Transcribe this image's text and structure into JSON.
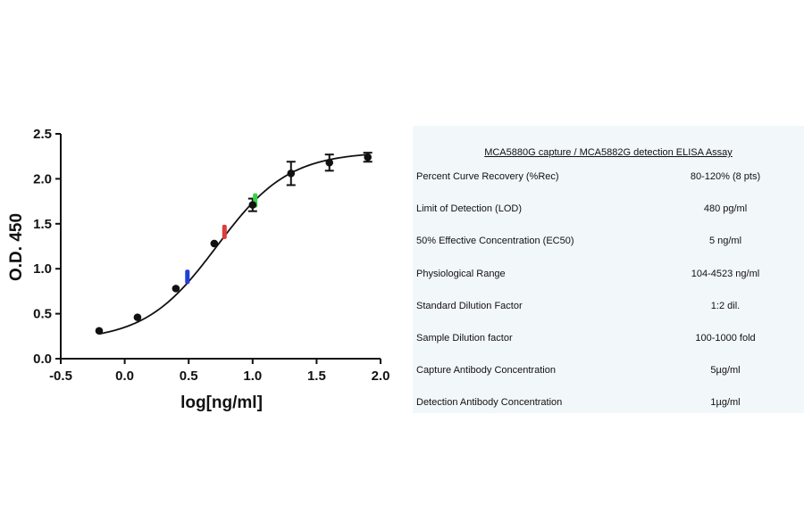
{
  "chart_data": {
    "type": "scatter",
    "xlabel": "log[ng/ml]",
    "ylabel": "O.D. 450",
    "xlim": [
      -0.5,
      2.0
    ],
    "ylim": [
      0.0,
      2.5
    ],
    "xticks": [
      "-0.5",
      "0.0",
      "0.5",
      "1.0",
      "1.5",
      "2.0"
    ],
    "yticks": [
      "0.0",
      "0.5",
      "1.0",
      "1.5",
      "2.0",
      "2.5"
    ],
    "grid": false,
    "points": [
      {
        "x": -0.2,
        "y": 0.31,
        "err": 0.01
      },
      {
        "x": 0.1,
        "y": 0.46,
        "err": 0.01
      },
      {
        "x": 0.4,
        "y": 0.78,
        "err": 0.01
      },
      {
        "x": 0.7,
        "y": 1.28,
        "err": 0.01
      },
      {
        "x": 1.0,
        "y": 1.71,
        "err": 0.07
      },
      {
        "x": 1.3,
        "y": 2.06,
        "err": 0.13
      },
      {
        "x": 1.6,
        "y": 2.18,
        "err": 0.09
      },
      {
        "x": 1.9,
        "y": 2.24,
        "err": 0.05
      }
    ],
    "highlights": [
      {
        "x": 0.49,
        "y": 0.91,
        "color": "#1f3fd6"
      },
      {
        "x": 0.78,
        "y": 1.41,
        "color": "#e03a3a"
      },
      {
        "x": 1.02,
        "y": 1.76,
        "color": "#3ad14a"
      }
    ],
    "curve": {
      "bottom": 0.2,
      "top": 2.3,
      "logEC50": 0.72,
      "hill": 1.55
    }
  },
  "table": {
    "header": "MCA5880G capture / MCA5882G detection ELISA Assay",
    "rows": [
      {
        "label": "Percent Curve Recovery (%Rec)",
        "value": "80-120% (8 pts)"
      },
      {
        "label": "Limit of Detection (LOD)",
        "value": "480 pg/ml"
      },
      {
        "label": "50% Effective Concentration (EC50)",
        "value": "5 ng/ml"
      },
      {
        "label": "Physiological Range",
        "value": "104-4523 ng/ml"
      },
      {
        "label": "Standard Dilution Factor",
        "value": "1:2 dil."
      },
      {
        "label": "Sample Dilution factor",
        "value": "100-1000 fold"
      },
      {
        "label": "Capture Antibody Concentration",
        "value": "5µg/ml"
      },
      {
        "label": "Detection Antibody Concentration",
        "value": "1µg/ml"
      }
    ]
  }
}
